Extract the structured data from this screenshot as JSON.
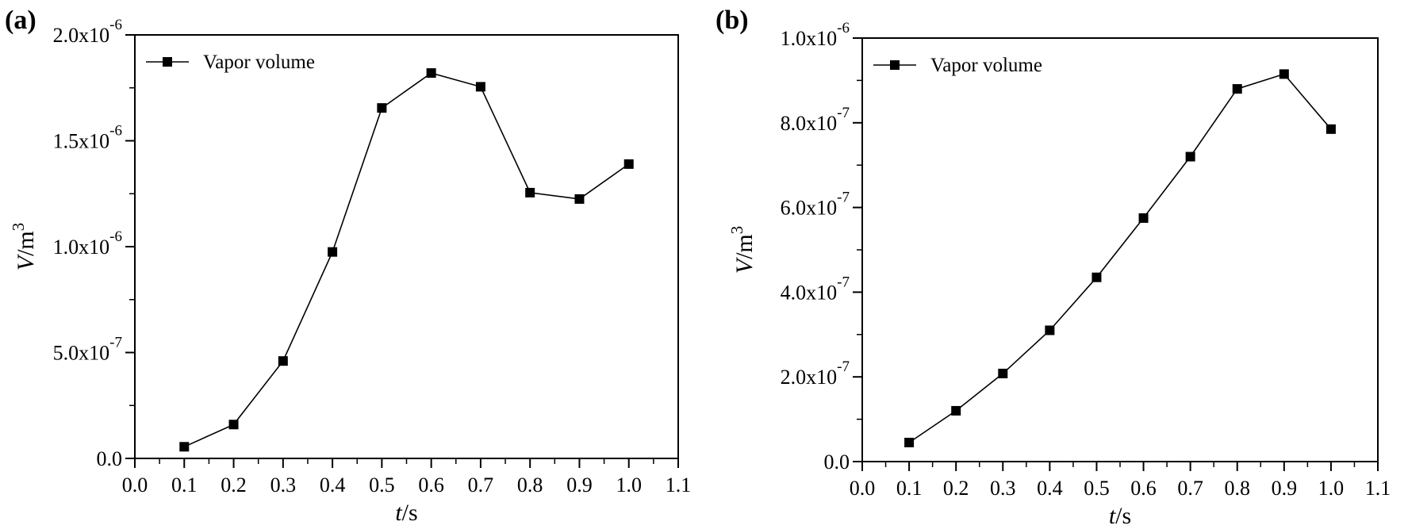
{
  "chart_data": [
    {
      "type": "line",
      "panel_label": "(a)",
      "xlabel_var": "t",
      "xlabel_unit": "/s",
      "ylabel_var": "V",
      "ylabel_unit": "/m",
      "ylabel_exp": "3",
      "xlim": [
        0.0,
        1.1
      ],
      "ylim": [
        0.0,
        2e-06
      ],
      "x_ticks": [
        0.0,
        0.1,
        0.2,
        0.3,
        0.4,
        0.5,
        0.6,
        0.7,
        0.8,
        0.9,
        1.0,
        1.1
      ],
      "x_tick_labels": [
        "0.0",
        "0.1",
        "0.2",
        "0.3",
        "0.4",
        "0.5",
        "0.6",
        "0.7",
        "0.8",
        "0.9",
        "1.0",
        "1.1"
      ],
      "y_ticks": [
        0.0,
        5e-07,
        1e-06,
        1.5e-06,
        2e-06
      ],
      "y_tick_labels": [
        {
          "text": "0.0",
          "exp": ""
        },
        {
          "text": "5.0x10",
          "exp": "-7"
        },
        {
          "text": "1.0x10",
          "exp": "-6"
        },
        {
          "text": "1.5x10",
          "exp": "-6"
        },
        {
          "text": "2.0x10",
          "exp": "-6"
        }
      ],
      "grid": false,
      "legend_placement": "top-left",
      "series": [
        {
          "name": "Vapor volume",
          "color": "#000000",
          "marker": "square",
          "x": [
            0.1,
            0.2,
            0.3,
            0.4,
            0.5,
            0.6,
            0.7,
            0.8,
            0.9,
            1.0
          ],
          "values": [
            5.5e-08,
            1.6e-07,
            4.6e-07,
            9.75e-07,
            1.655e-06,
            1.82e-06,
            1.755e-06,
            1.255e-06,
            1.225e-06,
            1.39e-06
          ]
        }
      ]
    },
    {
      "type": "line",
      "panel_label": "(b)",
      "xlabel_var": "t",
      "xlabel_unit": "/s",
      "ylabel_var": "V",
      "ylabel_unit": "/m",
      "ylabel_exp": "3",
      "xlim": [
        0.0,
        1.1
      ],
      "ylim": [
        0.0,
        1e-06
      ],
      "x_ticks": [
        0.0,
        0.1,
        0.2,
        0.3,
        0.4,
        0.5,
        0.6,
        0.7,
        0.8,
        0.9,
        1.0,
        1.1
      ],
      "x_tick_labels": [
        "0.0",
        "0.1",
        "0.2",
        "0.3",
        "0.4",
        "0.5",
        "0.6",
        "0.7",
        "0.8",
        "0.9",
        "1.0",
        "1.1"
      ],
      "y_ticks": [
        0.0,
        2e-07,
        4e-07,
        6e-07,
        8e-07,
        1e-06
      ],
      "y_tick_labels": [
        {
          "text": "0.0",
          "exp": ""
        },
        {
          "text": "2.0x10",
          "exp": "-7"
        },
        {
          "text": "4.0x10",
          "exp": "-7"
        },
        {
          "text": "6.0x10",
          "exp": "-7"
        },
        {
          "text": "8.0x10",
          "exp": "-7"
        },
        {
          "text": "1.0x10",
          "exp": "-6"
        }
      ],
      "grid": false,
      "legend_placement": "top-left",
      "series": [
        {
          "name": "Vapor volume",
          "color": "#000000",
          "marker": "square",
          "x": [
            0.1,
            0.2,
            0.3,
            0.4,
            0.5,
            0.6,
            0.7,
            0.8,
            0.9,
            1.0
          ],
          "values": [
            4.5e-08,
            1.2e-07,
            2.08e-07,
            3.1e-07,
            4.35e-07,
            5.75e-07,
            7.2e-07,
            8.8e-07,
            9.15e-07,
            7.85e-07
          ]
        }
      ]
    }
  ]
}
